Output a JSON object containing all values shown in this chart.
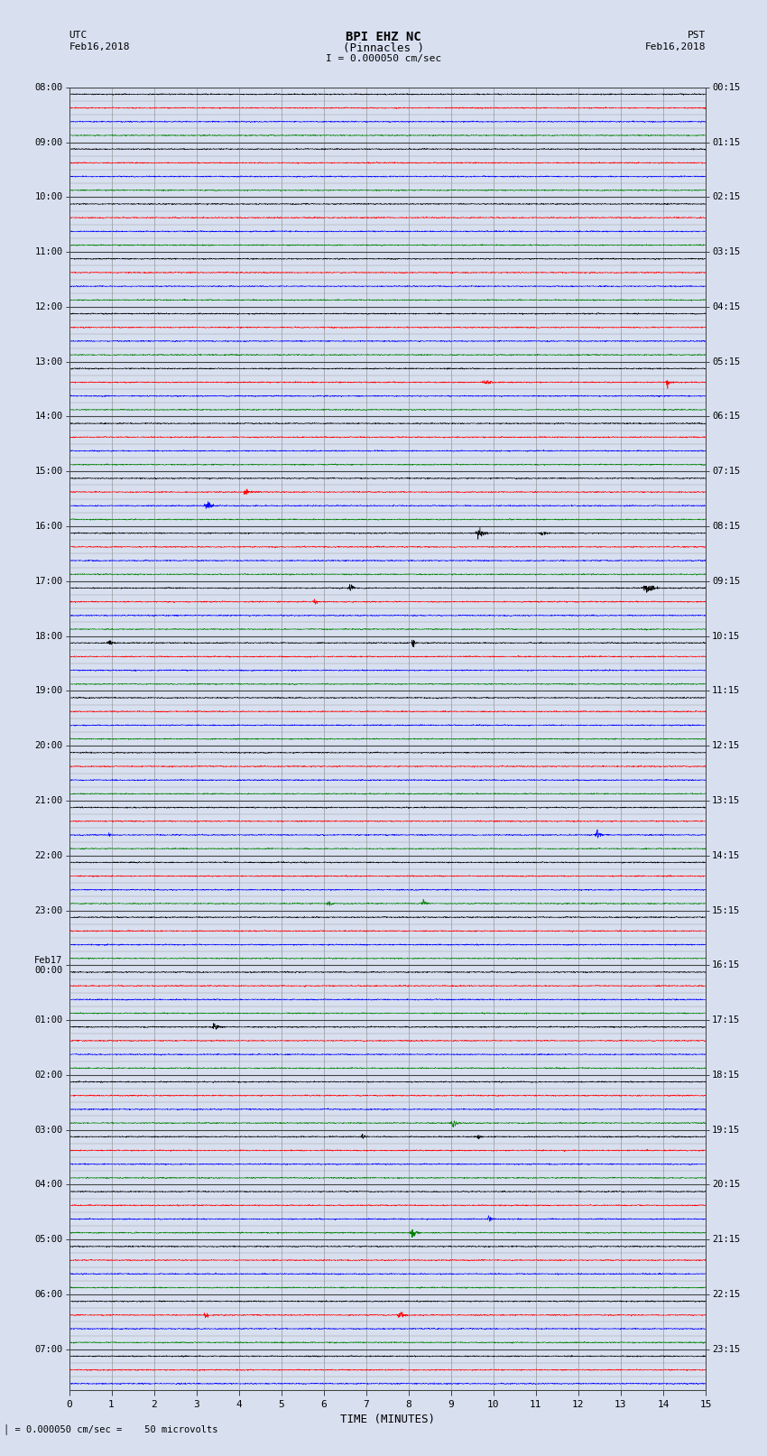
{
  "title_line1": "BPI EHZ NC",
  "title_line2": "(Pinnacles )",
  "scale_text": "I = 0.000050 cm/sec",
  "left_header_line1": "UTC",
  "left_header_line2": "Feb16,2018",
  "right_header_line1": "PST",
  "right_header_line2": "Feb16,2018",
  "bottom_label": "TIME (MINUTES)",
  "bottom_note": "= 0.000050 cm/sec =    50 microvolts",
  "trace_colors": [
    "black",
    "red",
    "blue",
    "green"
  ],
  "utc_labels": [
    "08:00",
    "",
    "",
    "",
    "09:00",
    "",
    "",
    "",
    "10:00",
    "",
    "",
    "",
    "11:00",
    "",
    "",
    "",
    "12:00",
    "",
    "",
    "",
    "13:00",
    "",
    "",
    "",
    "14:00",
    "",
    "",
    "",
    "15:00",
    "",
    "",
    "",
    "16:00",
    "",
    "",
    "",
    "17:00",
    "",
    "",
    "",
    "18:00",
    "",
    "",
    "",
    "19:00",
    "",
    "",
    "",
    "20:00",
    "",
    "",
    "",
    "21:00",
    "",
    "",
    "",
    "22:00",
    "",
    "",
    "",
    "23:00",
    "",
    "",
    "",
    "Feb17\n00:00",
    "",
    "",
    "",
    "01:00",
    "",
    "",
    "",
    "02:00",
    "",
    "",
    "",
    "03:00",
    "",
    "",
    "",
    "04:00",
    "",
    "",
    "",
    "05:00",
    "",
    "",
    "",
    "06:00",
    "",
    "",
    "",
    "07:00",
    "",
    ""
  ],
  "pst_labels": [
    "00:15",
    "",
    "",
    "",
    "01:15",
    "",
    "",
    "",
    "02:15",
    "",
    "",
    "",
    "03:15",
    "",
    "",
    "",
    "04:15",
    "",
    "",
    "",
    "05:15",
    "",
    "",
    "",
    "06:15",
    "",
    "",
    "",
    "07:15",
    "",
    "",
    "",
    "08:15",
    "",
    "",
    "",
    "09:15",
    "",
    "",
    "",
    "10:15",
    "",
    "",
    "",
    "11:15",
    "",
    "",
    "",
    "12:15",
    "",
    "",
    "",
    "13:15",
    "",
    "",
    "",
    "14:15",
    "",
    "",
    "",
    "15:15",
    "",
    "",
    "",
    "16:15",
    "",
    "",
    "",
    "17:15",
    "",
    "",
    "",
    "18:15",
    "",
    "",
    "",
    "19:15",
    "",
    "",
    "",
    "20:15",
    "",
    "",
    "",
    "21:15",
    "",
    "",
    "",
    "22:15",
    "",
    "",
    "",
    "23:15",
    "",
    ""
  ],
  "n_rows": 95,
  "xmin": 0,
  "xmax": 15,
  "fig_width": 8.5,
  "fig_height": 16.13,
  "dpi": 100,
  "background": "#d8e0f0",
  "grid_color": "#777777",
  "hour_line_color": "#444444",
  "subrow_line_color": "#999999",
  "trace_amplitude": 0.28,
  "noise_base": 0.025,
  "seed": 42,
  "n_points": 3000
}
